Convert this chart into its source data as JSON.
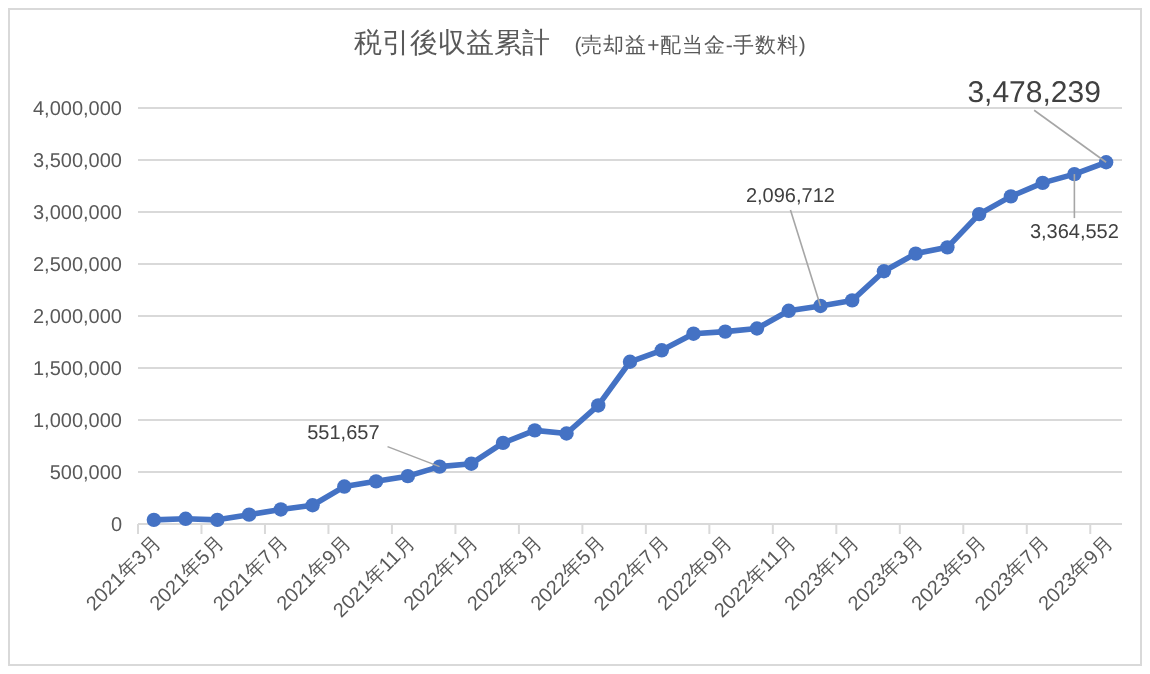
{
  "chart_data": {
    "type": "line",
    "title": "税引後収益累計",
    "subtitle": "(売却益+配当金-手数料)",
    "categories": [
      "2021年3月",
      null,
      "2021年5月",
      null,
      "2021年7月",
      null,
      "2021年9月",
      null,
      "2021年11月",
      null,
      "2022年1月",
      null,
      "2022年3月",
      null,
      "2022年5月",
      null,
      "2022年7月",
      null,
      "2022年9月",
      null,
      "2022年11月",
      null,
      "2023年1月",
      null,
      "2023年3月",
      null,
      "2023年5月",
      null,
      "2023年7月",
      null,
      "2023年9月"
    ],
    "series": [
      {
        "color": "#4472c4",
        "values": [
          40000,
          50000,
          40000,
          90000,
          140000,
          180000,
          360000,
          410000,
          460000,
          551657,
          580000,
          780000,
          900000,
          870000,
          1140000,
          1560000,
          1670000,
          1830000,
          1850000,
          1880000,
          2050000,
          2096712,
          2150000,
          2430000,
          2600000,
          2660000,
          2980000,
          3150000,
          3280000,
          3364552,
          3478239
        ],
        "value_labels": [
          null,
          null,
          null,
          null,
          null,
          null,
          null,
          null,
          null,
          "551,657",
          null,
          null,
          null,
          null,
          null,
          null,
          null,
          null,
          null,
          null,
          null,
          "2,096,712",
          null,
          null,
          null,
          null,
          null,
          null,
          null,
          "3,364,552",
          "3,478,239"
        ]
      }
    ],
    "ylim": [
      0,
      4000000
    ],
    "yticks": [
      {
        "value": 0,
        "label": "0"
      },
      {
        "value": 500000,
        "label": "500,000"
      },
      {
        "value": 1000000,
        "label": "1,000,000"
      },
      {
        "value": 1500000,
        "label": "1,500,000"
      },
      {
        "value": 2000000,
        "label": "2,000,000"
      },
      {
        "value": 2500000,
        "label": "2,500,000"
      },
      {
        "value": 3000000,
        "label": "3,000,000"
      },
      {
        "value": 3500000,
        "label": "3,500,000"
      },
      {
        "value": 4000000,
        "label": "4,000,000"
      }
    ],
    "grid": "y",
    "marker": "circle",
    "line_style": "solid"
  }
}
